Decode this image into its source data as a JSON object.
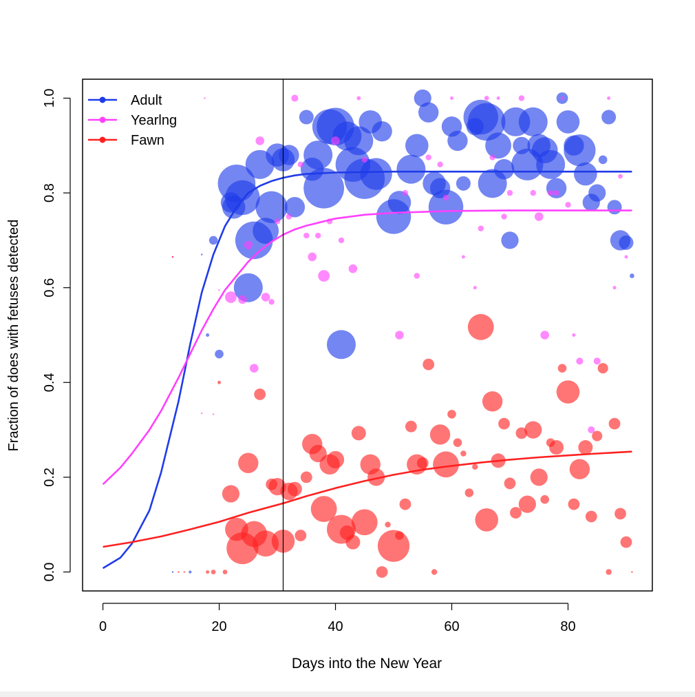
{
  "chart_data": {
    "type": "scatter",
    "xlabel": "Days into the New Year",
    "ylabel": "Fraction of does with fetuses detected",
    "xlim": [
      -3.5,
      94.5
    ],
    "ylim": [
      -0.04,
      1.04
    ],
    "xticks": [
      0,
      20,
      40,
      60,
      80
    ],
    "yticks": [
      0.0,
      0.2,
      0.4,
      0.6,
      0.8,
      1.0
    ],
    "xtick_labels": [
      "0",
      "20",
      "40",
      "60",
      "80"
    ],
    "ytick_labels": [
      "0.0",
      "0.2",
      "0.4",
      "0.6",
      "0.8",
      "1.0"
    ],
    "vline_x": 31,
    "legend_position": "top-left",
    "grid": false,
    "series": [
      {
        "name": "Adult",
        "color": "#1f3be8",
        "curve": {
          "x": [
            0,
            3,
            5,
            8,
            10,
            13,
            15,
            17,
            19,
            21,
            23,
            25,
            27,
            29,
            31,
            33,
            35,
            40,
            45,
            50,
            60,
            70,
            80,
            91
          ],
          "y": [
            0.008,
            0.03,
            0.06,
            0.13,
            0.21,
            0.36,
            0.48,
            0.59,
            0.67,
            0.73,
            0.77,
            0.8,
            0.815,
            0.825,
            0.832,
            0.837,
            0.84,
            0.843,
            0.844,
            0.845,
            0.845,
            0.845,
            0.845,
            0.845
          ]
        },
        "points": [
          [
            12,
            0,
            0.3
          ],
          [
            15,
            0,
            0.5
          ],
          [
            19,
            0.7,
            1.5
          ],
          [
            20,
            0.46,
            1.5
          ],
          [
            18,
            0.5,
            0.6
          ],
          [
            17,
            0.67,
            0.3
          ],
          [
            22,
            0.78,
            3.5
          ],
          [
            22.5,
            0.77,
            4
          ],
          [
            23,
            0.82,
            6.5
          ],
          [
            24,
            0.79,
            6
          ],
          [
            25,
            0.6,
            5
          ],
          [
            26,
            0.7,
            6.5
          ],
          [
            27,
            0.86,
            5
          ],
          [
            28,
            0.72,
            4.5
          ],
          [
            29,
            0.77,
            5.5
          ],
          [
            30,
            0.88,
            4
          ],
          [
            31,
            0.87,
            4
          ],
          [
            32,
            0.88,
            3.5
          ],
          [
            33,
            0.77,
            3.5
          ],
          [
            35,
            0.96,
            2.5
          ],
          [
            36,
            0.85,
            4
          ],
          [
            37,
            0.88,
            5
          ],
          [
            38,
            0.81,
            7
          ],
          [
            39,
            0.94,
            6
          ],
          [
            40,
            0.94,
            6.5
          ],
          [
            41,
            0.48,
            5
          ],
          [
            42,
            0.92,
            5
          ],
          [
            43,
            0.86,
            6
          ],
          [
            44,
            0.91,
            5
          ],
          [
            45,
            0.83,
            7
          ],
          [
            46,
            0.95,
            4
          ],
          [
            47,
            0.84,
            5.5
          ],
          [
            48,
            0.93,
            3.5
          ],
          [
            50,
            0.75,
            6
          ],
          [
            51,
            0.78,
            4
          ],
          [
            53,
            0.85,
            5
          ],
          [
            54,
            0.9,
            4
          ],
          [
            55,
            1.0,
            3
          ],
          [
            56,
            0.97,
            3.5
          ],
          [
            57,
            0.82,
            4
          ],
          [
            58,
            0.81,
            3.5
          ],
          [
            59,
            0.77,
            6
          ],
          [
            60,
            0.94,
            3.5
          ],
          [
            61,
            0.91,
            3.5
          ],
          [
            62,
            0.82,
            2.5
          ],
          [
            64,
            0.94,
            3
          ],
          [
            65,
            0.96,
            6
          ],
          [
            66,
            0.95,
            6.5
          ],
          [
            67,
            0.82,
            5
          ],
          [
            68,
            0.9,
            4.5
          ],
          [
            69,
            0.85,
            3.5
          ],
          [
            70,
            0.7,
            3
          ],
          [
            71,
            0.95,
            5
          ],
          [
            72,
            0.9,
            3
          ],
          [
            73,
            0.86,
            5.5
          ],
          [
            74,
            0.95,
            5
          ],
          [
            75,
            0.9,
            4
          ],
          [
            76,
            0.89,
            4.5
          ],
          [
            77,
            0.86,
            5
          ],
          [
            78,
            0.81,
            3.5
          ],
          [
            79,
            1.0,
            2
          ],
          [
            80,
            0.95,
            4
          ],
          [
            81,
            0.9,
            3.5
          ],
          [
            82,
            0.89,
            5.5
          ],
          [
            83,
            0.84,
            4
          ],
          [
            84,
            0.78,
            3
          ],
          [
            85,
            0.8,
            3
          ],
          [
            86,
            0.87,
            1.5
          ],
          [
            87,
            0.96,
            2.5
          ],
          [
            88,
            0.77,
            2.5
          ],
          [
            89,
            0.7,
            3.5
          ],
          [
            90,
            0.695,
            2.5
          ],
          [
            91,
            0.625,
            0.8
          ]
        ]
      },
      {
        "name": "Yearlng",
        "color": "#ff40ff",
        "curve": {
          "x": [
            0,
            3,
            5,
            8,
            10,
            13,
            15,
            17,
            19,
            21,
            23,
            25,
            27,
            29,
            31,
            33,
            35,
            40,
            45,
            50,
            60,
            70,
            80,
            91
          ],
          "y": [
            0.185,
            0.22,
            0.25,
            0.3,
            0.34,
            0.41,
            0.46,
            0.51,
            0.555,
            0.595,
            0.625,
            0.655,
            0.678,
            0.697,
            0.712,
            0.723,
            0.731,
            0.746,
            0.754,
            0.758,
            0.762,
            0.763,
            0.763,
            0.763
          ]
        },
        "points": [
          [
            12,
            0.665,
            0.3
          ],
          [
            17,
            0.335,
            0.3
          ],
          [
            17.5,
            1.0,
            0.3
          ],
          [
            19,
            0.333,
            0.3
          ],
          [
            20,
            0.595,
            0.3
          ],
          [
            22,
            0.58,
            2
          ],
          [
            24,
            0.575,
            1.5
          ],
          [
            25,
            0.69,
            1.5
          ],
          [
            26,
            0.43,
            1.5
          ],
          [
            27,
            0.91,
            1.5
          ],
          [
            28,
            0.58,
            1.5
          ],
          [
            29,
            0.57,
            1
          ],
          [
            30,
            0.74,
            1
          ],
          [
            32,
            0.75,
            1
          ],
          [
            33,
            1.0,
            1.2
          ],
          [
            34,
            0.86,
            1
          ],
          [
            35,
            0.71,
            1
          ],
          [
            36,
            0.665,
            1.5
          ],
          [
            37,
            0.71,
            1
          ],
          [
            38,
            0.625,
            2
          ],
          [
            39,
            0.74,
            1
          ],
          [
            40,
            0.91,
            1.5
          ],
          [
            41,
            0.7,
            1
          ],
          [
            43,
            0.64,
            1.5
          ],
          [
            44,
            1.0,
            0.7
          ],
          [
            45,
            0.87,
            1
          ],
          [
            51,
            0.5,
            1.5
          ],
          [
            52,
            0.8,
            1
          ],
          [
            54,
            0.625,
            1
          ],
          [
            56,
            0.875,
            1
          ],
          [
            58,
            0.86,
            1
          ],
          [
            59,
            0.79,
            1
          ],
          [
            60,
            1.0,
            0.6
          ],
          [
            62,
            0.665,
            0.6
          ],
          [
            64,
            0.6,
            0.6
          ],
          [
            65,
            0.725,
            1
          ],
          [
            66,
            1.0,
            0.8
          ],
          [
            67,
            0.875,
            1
          ],
          [
            68,
            1.0,
            0.6
          ],
          [
            69,
            0.75,
            1
          ],
          [
            70,
            0.8,
            1
          ],
          [
            72,
            1.0,
            1
          ],
          [
            74,
            0.8,
            1
          ],
          [
            75,
            0.75,
            1.5
          ],
          [
            76,
            0.5,
            1.5
          ],
          [
            77,
            0.8,
            1
          ],
          [
            78,
            0.8,
            1
          ],
          [
            79,
            1.0,
            0.6
          ],
          [
            80,
            0.775,
            1
          ],
          [
            81,
            0.5,
            0.6
          ],
          [
            82,
            0.445,
            1.2
          ],
          [
            84,
            0.3,
            1.2
          ],
          [
            85,
            0.445,
            1.2
          ],
          [
            87,
            1.0,
            0.6
          ],
          [
            88,
            0.6,
            0.6
          ],
          [
            89,
            0.835,
            0.8
          ],
          [
            90,
            0.665,
            0.6
          ]
        ]
      },
      {
        "name": "Fawn",
        "color": "#ff2020",
        "curve": {
          "x": [
            0,
            5,
            10,
            15,
            20,
            25,
            31,
            35,
            40,
            45,
            50,
            55,
            60,
            65,
            70,
            75,
            80,
            85,
            91
          ],
          "y": [
            0.053,
            0.063,
            0.075,
            0.09,
            0.106,
            0.125,
            0.145,
            0.16,
            0.177,
            0.192,
            0.205,
            0.216,
            0.224,
            0.231,
            0.237,
            0.242,
            0.246,
            0.25,
            0.254
          ]
        },
        "points": [
          [
            12,
            0.665,
            0.3
          ],
          [
            13,
            0,
            0.3
          ],
          [
            14,
            0,
            0.3
          ],
          [
            18,
            0,
            0.6
          ],
          [
            19,
            0,
            0.8
          ],
          [
            20,
            0.4,
            0.6
          ],
          [
            21,
            0,
            0.8
          ],
          [
            22,
            0.165,
            3
          ],
          [
            23,
            0.09,
            4
          ],
          [
            24,
            0.05,
            5.5
          ],
          [
            25,
            0.23,
            3.5
          ],
          [
            26,
            0.08,
            4.5
          ],
          [
            27,
            0.375,
            2
          ],
          [
            28,
            0.06,
            4.5
          ],
          [
            29,
            0.185,
            2
          ],
          [
            30,
            0.18,
            3
          ],
          [
            31,
            0.065,
            4
          ],
          [
            32,
            0.17,
            3
          ],
          [
            33,
            0.175,
            2.5
          ],
          [
            34,
            0.077,
            2
          ],
          [
            35,
            0.2,
            2
          ],
          [
            36,
            0.27,
            3.5
          ],
          [
            37,
            0.25,
            3
          ],
          [
            38,
            0.133,
            4.5
          ],
          [
            39,
            0.227,
            3.5
          ],
          [
            40,
            0.237,
            3
          ],
          [
            41,
            0.09,
            5
          ],
          [
            42,
            0.083,
            2.5
          ],
          [
            43,
            0.063,
            2.5
          ],
          [
            44,
            0.293,
            2.5
          ],
          [
            45,
            0.105,
            4.5
          ],
          [
            46,
            0.227,
            3.5
          ],
          [
            47,
            0.2,
            3
          ],
          [
            48,
            0,
            2
          ],
          [
            49,
            0.1,
            1
          ],
          [
            50,
            0.055,
            5.5
          ],
          [
            51,
            0.077,
            1.5
          ],
          [
            52,
            0.143,
            2
          ],
          [
            53,
            0.307,
            2
          ],
          [
            54,
            0.227,
            3.5
          ],
          [
            55,
            0.23,
            2
          ],
          [
            56,
            0.438,
            2
          ],
          [
            57,
            0,
            1
          ],
          [
            58,
            0.29,
            3.5
          ],
          [
            59,
            0.227,
            4.5
          ],
          [
            60,
            0.333,
            1.5
          ],
          [
            61,
            0.273,
            1.5
          ],
          [
            62,
            0.25,
            1
          ],
          [
            63,
            0.167,
            1.5
          ],
          [
            64,
            0.222,
            1
          ],
          [
            65,
            0.517,
            4.5
          ],
          [
            66,
            0.11,
            4
          ],
          [
            67,
            0.36,
            3.5
          ],
          [
            68,
            0.235,
            2.5
          ],
          [
            69,
            0.313,
            2
          ],
          [
            70,
            0.187,
            2
          ],
          [
            71,
            0.125,
            2
          ],
          [
            72,
            0.293,
            2
          ],
          [
            73,
            0.143,
            3
          ],
          [
            74,
            0.3,
            3
          ],
          [
            75,
            0.2,
            3
          ],
          [
            76,
            0.153,
            1.5
          ],
          [
            77,
            0.273,
            1.5
          ],
          [
            78,
            0.263,
            2.5
          ],
          [
            79,
            0.43,
            1.5
          ],
          [
            80,
            0.38,
            4
          ],
          [
            81,
            0.143,
            2
          ],
          [
            82,
            0.217,
            3.5
          ],
          [
            83,
            0.263,
            2.5
          ],
          [
            84,
            0.117,
            2
          ],
          [
            85,
            0.287,
            1.8
          ],
          [
            86,
            0.43,
            1.8
          ],
          [
            87,
            0,
            1
          ],
          [
            88,
            0.313,
            2
          ],
          [
            89,
            0.123,
            2
          ],
          [
            90,
            0.063,
            2
          ],
          [
            91,
            0,
            0.3
          ]
        ]
      }
    ]
  }
}
